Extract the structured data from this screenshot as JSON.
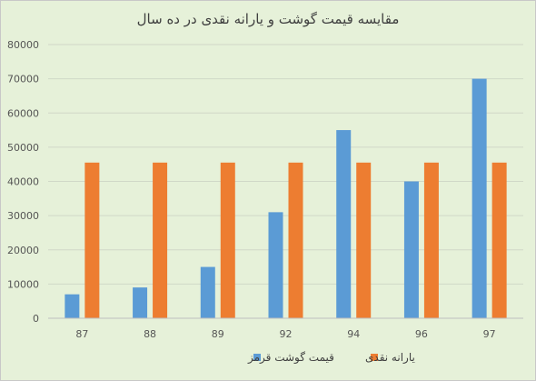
{
  "chart_data": {
    "type": "bar",
    "title": "مقایسه قیمت گوشت و یارانه نقدی در ده سال",
    "xlabel": "",
    "ylabel": "",
    "categories": [
      "87",
      "88",
      "89",
      "92",
      "94",
      "96",
      "97"
    ],
    "ylim": [
      0,
      80000
    ],
    "y_ticks": [
      0,
      10000,
      20000,
      30000,
      40000,
      50000,
      60000,
      70000,
      80000
    ],
    "grid": true,
    "legend_position": "bottom",
    "series": [
      {
        "name": "قیمت گوشت قرمز",
        "color": "#5b9bd5",
        "values": [
          7000,
          9000,
          15000,
          31000,
          55000,
          40000,
          70000
        ]
      },
      {
        "name": "یارانه نقدی",
        "color": "#ed7d31",
        "values": [
          45500,
          45500,
          45500,
          45500,
          45500,
          45500,
          45500
        ]
      }
    ]
  }
}
